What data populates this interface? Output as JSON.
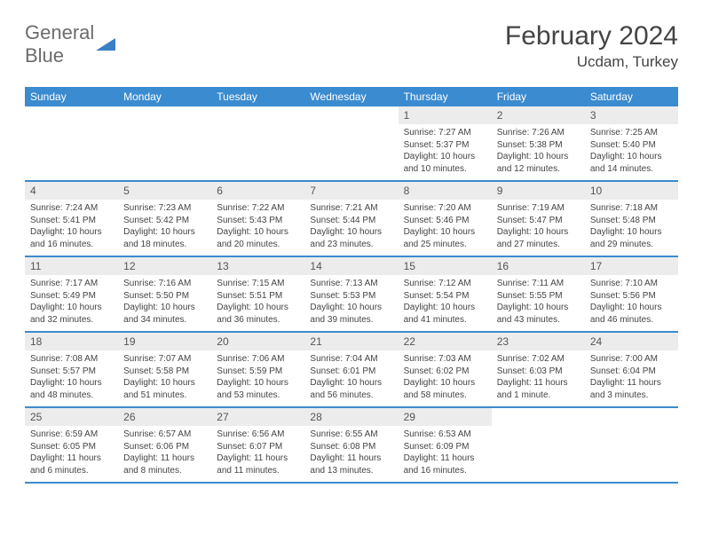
{
  "logo": {
    "part1": "General",
    "part2": "Blue"
  },
  "title": "February 2024",
  "location": "Ucdam, Turkey",
  "daynames": [
    "Sunday",
    "Monday",
    "Tuesday",
    "Wednesday",
    "Thursday",
    "Friday",
    "Saturday"
  ],
  "colors": {
    "header_bg": "#3b8bd0",
    "rule": "#3b8bd0",
    "daynum_bg": "#ececec",
    "text": "#444444",
    "logo_gray": "#6c6c6c",
    "logo_blue": "#3b7fc4"
  },
  "days": [
    {
      "n": "1",
      "sr": "7:27 AM",
      "ss": "5:37 PM",
      "dl": "10 hours and 10 minutes."
    },
    {
      "n": "2",
      "sr": "7:26 AM",
      "ss": "5:38 PM",
      "dl": "10 hours and 12 minutes."
    },
    {
      "n": "3",
      "sr": "7:25 AM",
      "ss": "5:40 PM",
      "dl": "10 hours and 14 minutes."
    },
    {
      "n": "4",
      "sr": "7:24 AM",
      "ss": "5:41 PM",
      "dl": "10 hours and 16 minutes."
    },
    {
      "n": "5",
      "sr": "7:23 AM",
      "ss": "5:42 PM",
      "dl": "10 hours and 18 minutes."
    },
    {
      "n": "6",
      "sr": "7:22 AM",
      "ss": "5:43 PM",
      "dl": "10 hours and 20 minutes."
    },
    {
      "n": "7",
      "sr": "7:21 AM",
      "ss": "5:44 PM",
      "dl": "10 hours and 23 minutes."
    },
    {
      "n": "8",
      "sr": "7:20 AM",
      "ss": "5:46 PM",
      "dl": "10 hours and 25 minutes."
    },
    {
      "n": "9",
      "sr": "7:19 AM",
      "ss": "5:47 PM",
      "dl": "10 hours and 27 minutes."
    },
    {
      "n": "10",
      "sr": "7:18 AM",
      "ss": "5:48 PM",
      "dl": "10 hours and 29 minutes."
    },
    {
      "n": "11",
      "sr": "7:17 AM",
      "ss": "5:49 PM",
      "dl": "10 hours and 32 minutes."
    },
    {
      "n": "12",
      "sr": "7:16 AM",
      "ss": "5:50 PM",
      "dl": "10 hours and 34 minutes."
    },
    {
      "n": "13",
      "sr": "7:15 AM",
      "ss": "5:51 PM",
      "dl": "10 hours and 36 minutes."
    },
    {
      "n": "14",
      "sr": "7:13 AM",
      "ss": "5:53 PM",
      "dl": "10 hours and 39 minutes."
    },
    {
      "n": "15",
      "sr": "7:12 AM",
      "ss": "5:54 PM",
      "dl": "10 hours and 41 minutes."
    },
    {
      "n": "16",
      "sr": "7:11 AM",
      "ss": "5:55 PM",
      "dl": "10 hours and 43 minutes."
    },
    {
      "n": "17",
      "sr": "7:10 AM",
      "ss": "5:56 PM",
      "dl": "10 hours and 46 minutes."
    },
    {
      "n": "18",
      "sr": "7:08 AM",
      "ss": "5:57 PM",
      "dl": "10 hours and 48 minutes."
    },
    {
      "n": "19",
      "sr": "7:07 AM",
      "ss": "5:58 PM",
      "dl": "10 hours and 51 minutes."
    },
    {
      "n": "20",
      "sr": "7:06 AM",
      "ss": "5:59 PM",
      "dl": "10 hours and 53 minutes."
    },
    {
      "n": "21",
      "sr": "7:04 AM",
      "ss": "6:01 PM",
      "dl": "10 hours and 56 minutes."
    },
    {
      "n": "22",
      "sr": "7:03 AM",
      "ss": "6:02 PM",
      "dl": "10 hours and 58 minutes."
    },
    {
      "n": "23",
      "sr": "7:02 AM",
      "ss": "6:03 PM",
      "dl": "11 hours and 1 minute."
    },
    {
      "n": "24",
      "sr": "7:00 AM",
      "ss": "6:04 PM",
      "dl": "11 hours and 3 minutes."
    },
    {
      "n": "25",
      "sr": "6:59 AM",
      "ss": "6:05 PM",
      "dl": "11 hours and 6 minutes."
    },
    {
      "n": "26",
      "sr": "6:57 AM",
      "ss": "6:06 PM",
      "dl": "11 hours and 8 minutes."
    },
    {
      "n": "27",
      "sr": "6:56 AM",
      "ss": "6:07 PM",
      "dl": "11 hours and 11 minutes."
    },
    {
      "n": "28",
      "sr": "6:55 AM",
      "ss": "6:08 PM",
      "dl": "11 hours and 13 minutes."
    },
    {
      "n": "29",
      "sr": "6:53 AM",
      "ss": "6:09 PM",
      "dl": "11 hours and 16 minutes."
    }
  ],
  "labels": {
    "sunrise": "Sunrise:",
    "sunset": "Sunset:",
    "daylight": "Daylight:"
  },
  "layout": {
    "leading_blanks": 4,
    "trailing_blanks": 2,
    "cols": 7
  }
}
